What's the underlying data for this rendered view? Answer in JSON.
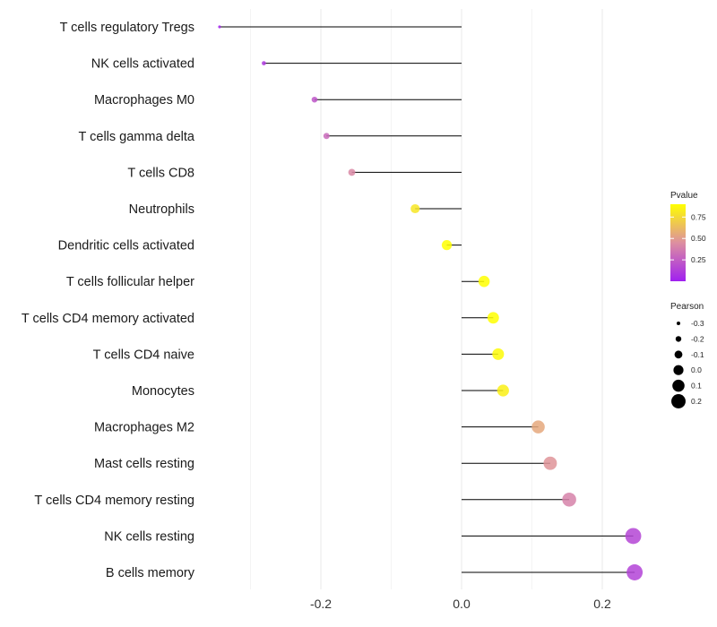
{
  "chart_data": {
    "type": "lollipop",
    "title": "",
    "xlabel": "",
    "ylabel": "",
    "xlim": [
      -0.365,
      0.265
    ],
    "x_ticks": [
      -0.2,
      0.0,
      0.2
    ],
    "x_tick_labels": [
      "-0.2",
      "0.0",
      "0.2"
    ],
    "grid": true,
    "categories": [
      "T cells regulatory  Tregs",
      "NK cells activated",
      "Macrophages M0",
      "T cells gamma delta",
      "T cells CD8",
      "Neutrophils",
      "Dendritic cells activated",
      "T cells follicular helper",
      "T cells CD4 memory activated",
      "T cells CD4 naive",
      "Monocytes",
      "Macrophages M2",
      "Mast cells resting",
      "T cells CD4 memory resting",
      "NK cells resting",
      "B cells memory"
    ],
    "pearson": [
      -0.344,
      -0.281,
      -0.209,
      -0.192,
      -0.156,
      -0.066,
      -0.021,
      0.032,
      0.045,
      0.052,
      0.059,
      0.109,
      0.126,
      0.153,
      0.244,
      0.246
    ],
    "pvalue": [
      0.02,
      0.1,
      0.22,
      0.3,
      0.42,
      0.8,
      0.97,
      0.95,
      0.92,
      0.88,
      0.84,
      0.55,
      0.47,
      0.4,
      0.15,
      0.14
    ],
    "legend": {
      "position": "right",
      "color": {
        "title": "Pvalue",
        "ticks": [
          0.25,
          0.5,
          0.75
        ],
        "tick_labels": [
          "0.25",
          "0.50",
          "0.75"
        ],
        "range": [
          0.0,
          0.9
        ],
        "low_color": "#a020f0",
        "mid_color": "#dd8fa0",
        "high_color": "#ffff00"
      },
      "size": {
        "title": "Pearson",
        "values": [
          -0.3,
          -0.2,
          -0.1,
          0.0,
          0.1,
          0.2
        ],
        "labels": [
          "-0.3",
          "-0.2",
          "-0.1",
          "0.0",
          "0.1",
          "0.2"
        ]
      }
    }
  }
}
